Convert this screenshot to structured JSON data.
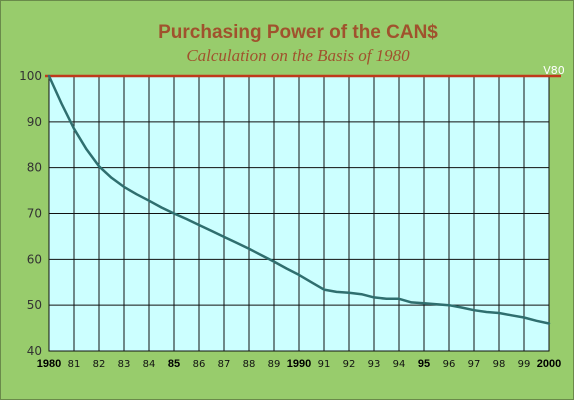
{
  "chart_data": {
    "type": "line",
    "title": "Purchasing Power of the CAN$",
    "subtitle": "Calculation on the Basis of 1980",
    "xlabel": "",
    "ylabel": "",
    "ylim": [
      40,
      100
    ],
    "yticks": [
      40,
      50,
      60,
      70,
      80,
      90,
      100
    ],
    "xlim": [
      1980,
      2000
    ],
    "xticks": [
      {
        "x": 1980,
        "label": "1980",
        "bold": true
      },
      {
        "x": 1981,
        "label": "81",
        "bold": false
      },
      {
        "x": 1982,
        "label": "82",
        "bold": false
      },
      {
        "x": 1983,
        "label": "83",
        "bold": false
      },
      {
        "x": 1984,
        "label": "84",
        "bold": false
      },
      {
        "x": 1985,
        "label": "85",
        "bold": true
      },
      {
        "x": 1986,
        "label": "86",
        "bold": false
      },
      {
        "x": 1987,
        "label": "87",
        "bold": false
      },
      {
        "x": 1988,
        "label": "88",
        "bold": false
      },
      {
        "x": 1989,
        "label": "89",
        "bold": false
      },
      {
        "x": 1990,
        "label": "1990",
        "bold": true
      },
      {
        "x": 1991,
        "label": "91",
        "bold": false
      },
      {
        "x": 1992,
        "label": "92",
        "bold": false
      },
      {
        "x": 1993,
        "label": "93",
        "bold": false
      },
      {
        "x": 1994,
        "label": "94",
        "bold": false
      },
      {
        "x": 1995,
        "label": "95",
        "bold": true
      },
      {
        "x": 1996,
        "label": "96",
        "bold": false
      },
      {
        "x": 1997,
        "label": "97",
        "bold": false
      },
      {
        "x": 1998,
        "label": "98",
        "bold": false
      },
      {
        "x": 1999,
        "label": "99",
        "bold": false
      },
      {
        "x": 2000,
        "label": "2000",
        "bold": true
      }
    ],
    "grid": true,
    "reference_line": {
      "value": 100,
      "label": "V80",
      "color": "#c0391b"
    },
    "series": [
      {
        "color": "#2f6f6f",
        "points": [
          [
            1980,
            100
          ],
          [
            1980.5,
            94
          ],
          [
            1981,
            88.5
          ],
          [
            1981.5,
            84
          ],
          [
            1982,
            80.3
          ],
          [
            1982.5,
            77.8
          ],
          [
            1983,
            75.8
          ],
          [
            1983.5,
            74.2
          ],
          [
            1984,
            72.8
          ],
          [
            1984.5,
            71.3
          ],
          [
            1985,
            70
          ],
          [
            1985.5,
            68.8
          ],
          [
            1986,
            67.5
          ],
          [
            1986.5,
            66.2
          ],
          [
            1987,
            64.9
          ],
          [
            1987.5,
            63.6
          ],
          [
            1988,
            62.3
          ],
          [
            1988.5,
            60.9
          ],
          [
            1989,
            59.5
          ],
          [
            1989.5,
            58
          ],
          [
            1990,
            56.6
          ],
          [
            1990.5,
            55
          ],
          [
            1991,
            53.4
          ],
          [
            1991.5,
            52.9
          ],
          [
            1992,
            52.7
          ],
          [
            1992.5,
            52.4
          ],
          [
            1993,
            51.7
          ],
          [
            1993.5,
            51.4
          ],
          [
            1994,
            51.4
          ],
          [
            1994.5,
            50.6
          ],
          [
            1995,
            50.4
          ],
          [
            1995.5,
            50.2
          ],
          [
            1996,
            50
          ],
          [
            1996.5,
            49.5
          ],
          [
            1997,
            48.9
          ],
          [
            1997.5,
            48.5
          ],
          [
            1998,
            48.3
          ],
          [
            1998.5,
            47.8
          ],
          [
            1999,
            47.3
          ],
          [
            1999.5,
            46.6
          ],
          [
            2000,
            46
          ]
        ]
      }
    ]
  },
  "colors": {
    "background": "#98cc6c",
    "plot_area": "#ccffff",
    "grid": "#111111",
    "title": "#a0522d"
  }
}
